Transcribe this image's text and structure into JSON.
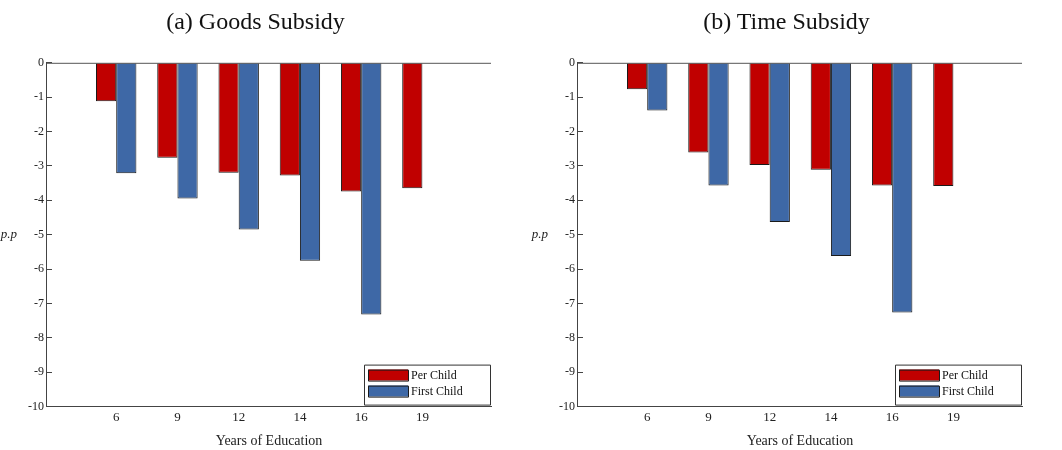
{
  "chart_data": [
    {
      "type": "bar",
      "title": "(a) Goods Subsidy",
      "xlabel": "Years of Education",
      "ylabel": "p.p",
      "categories": [
        "6",
        "9",
        "12",
        "14",
        "16",
        "19"
      ],
      "series": [
        {
          "name": "Per Child",
          "color": "#c00000",
          "values": [
            -1.12,
            -2.76,
            -3.2,
            -3.28,
            -3.74,
            -3.65
          ]
        },
        {
          "name": "First Child",
          "color": "#3e68a6",
          "values": [
            -3.21,
            -3.95,
            -4.85,
            -5.76,
            -7.32,
            null
          ]
        }
      ],
      "ylim": [
        -10,
        0
      ],
      "yticks": [
        -10,
        -9,
        -8,
        -7,
        -6,
        -5,
        -4,
        -3,
        -2,
        -1,
        0
      ],
      "grid": false,
      "legend": "bottom right"
    },
    {
      "type": "bar",
      "title": "(b) Time Subsidy",
      "xlabel": "Years of Education",
      "ylabel": "p.p",
      "categories": [
        "6",
        "9",
        "12",
        "14",
        "16",
        "19"
      ],
      "series": [
        {
          "name": "Per Child",
          "color": "#c00000",
          "values": [
            -0.77,
            -2.61,
            -2.97,
            -3.11,
            -3.57,
            -3.58
          ]
        },
        {
          "name": "First Child",
          "color": "#3e68a6",
          "values": [
            -1.39,
            -3.57,
            -4.63,
            -5.62,
            -7.26,
            null
          ]
        }
      ],
      "ylim": [
        -10,
        0
      ],
      "yticks": [
        -10,
        -9,
        -8,
        -7,
        -6,
        -5,
        -4,
        -3,
        -2,
        -1,
        0
      ],
      "grid": false,
      "legend": "bottom right"
    }
  ]
}
